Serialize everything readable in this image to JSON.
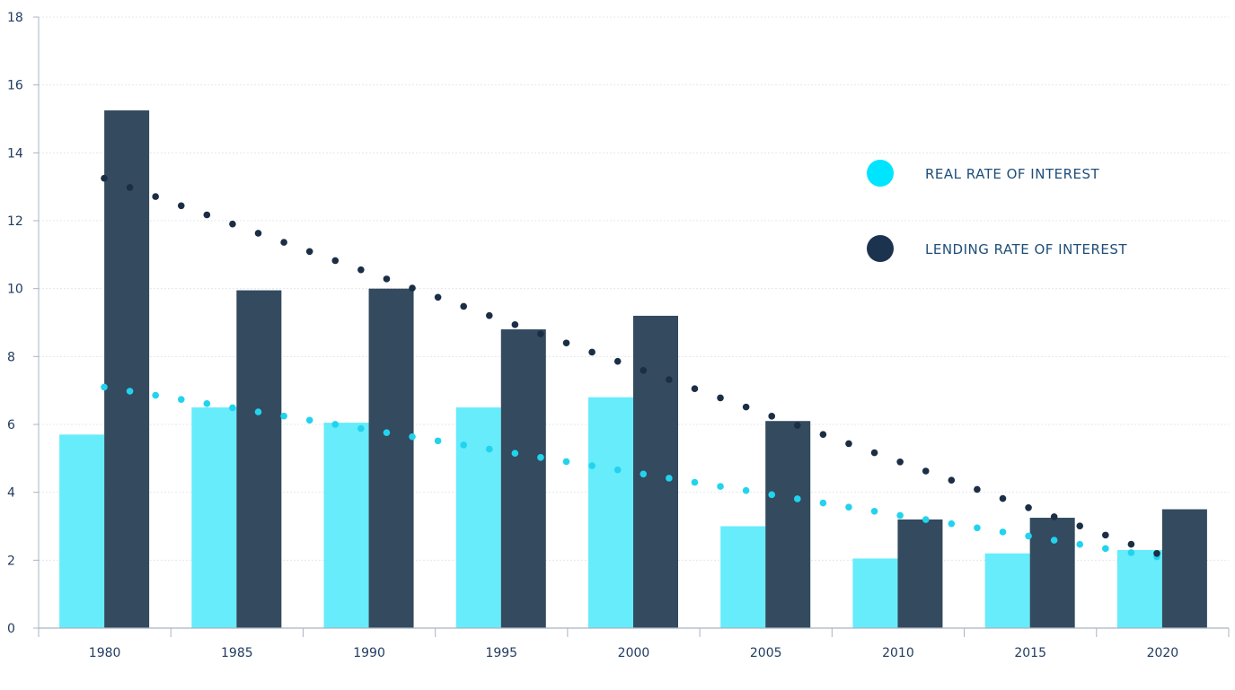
{
  "chart_data": {
    "type": "bar",
    "title": "",
    "xlabel": "",
    "ylabel": "",
    "ylim": [
      0,
      18
    ],
    "yticks": [
      0,
      2,
      4,
      6,
      8,
      10,
      12,
      14,
      16,
      18
    ],
    "categories": [
      "1980",
      "1985",
      "1990",
      "1995",
      "2000",
      "2005",
      "2010",
      "2015",
      "2020"
    ],
    "series": [
      {
        "name": "REAL RATE OF INTEREST",
        "values": [
          5.7,
          6.5,
          6.05,
          6.5,
          6.8,
          3.0,
          2.05,
          2.2,
          2.3
        ],
        "color": "#66ecfb"
      },
      {
        "name": "LENDING RATE OF INTEREST",
        "values": [
          15.25,
          9.95,
          10.0,
          8.8,
          9.2,
          6.1,
          3.2,
          3.25,
          3.5
        ],
        "color": "#334a5f"
      }
    ],
    "trendlines": [
      {
        "series": "REAL RATE OF INTEREST",
        "style": "dotted",
        "start": 7.1,
        "end": 2.1,
        "color": "#22d3ee"
      },
      {
        "series": "LENDING RATE OF INTEREST",
        "style": "dotted",
        "start": 13.25,
        "end": 2.2,
        "color": "#1c2e45"
      }
    ],
    "grid": true,
    "legend_position": "top-right",
    "axis_color": "#a8b4c4",
    "tick_color": "#1f3a5f"
  }
}
